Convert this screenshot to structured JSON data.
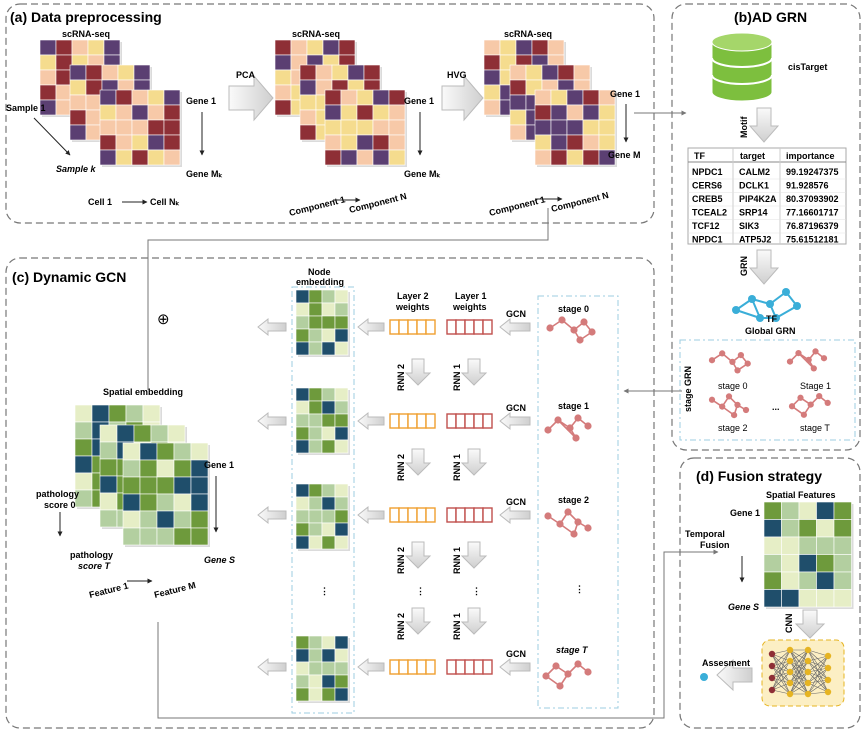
{
  "panels": {
    "a": {
      "title": "(a) Data preprocessing",
      "m1": {
        "title": "scRNA-seq",
        "sample1": "Sample 1",
        "samplek": "Sample k",
        "gene1": "Gene 1",
        "geneM": "Gene Mₖ",
        "cell1": "Cell 1",
        "cellN": "Cell Nₖ"
      },
      "pca": "PCA",
      "m2": {
        "title": "scRNA-seq",
        "gene1": "Gene 1",
        "geneM": "Gene Mₖ",
        "comp1": "Component 1",
        "compN": "Component N"
      },
      "hvg": "HVG",
      "m3": {
        "title": "scRNA-seq",
        "gene1": "Gene 1",
        "geneM": "Gene M",
        "comp1": "Component 1",
        "compN": "Component N"
      }
    },
    "b": {
      "title": "(b)AD GRN",
      "cistarget": "cisTarget",
      "motif": "Motif",
      "table": {
        "headers": [
          "TF",
          "target",
          "importance"
        ],
        "rows": [
          [
            "NPDC1",
            "CALM2",
            "99.19247375"
          ],
          [
            "CERS6",
            "DCLK1",
            "91.928576"
          ],
          [
            "CREB5",
            "PIP4K2A",
            "80.37093902"
          ],
          [
            "TCEAL2",
            "SRP14",
            "77.16601717"
          ],
          [
            "TCF12",
            "SIK3",
            "76.87196379"
          ],
          [
            "NPDC1",
            "ATP5J2",
            "75.61512181"
          ]
        ]
      },
      "grn_arrow": "GRN",
      "tf": "TF",
      "global_grn": "Global GRN",
      "stage_grn": "stage GRN",
      "stages": [
        "stage 0",
        "Stage 1",
        "stage 2",
        "stage T"
      ],
      "dots": "..."
    },
    "c": {
      "title": "(c) Dynamic GCN",
      "oplus": "⊕",
      "node_embedding_1": "Node",
      "node_embedding_2": "embedding",
      "spatial_embedding": "Spatial embedding",
      "gene1": "Gene 1",
      "geneS": "Gene S",
      "feature1": "Feature 1",
      "featureM": "Feature M",
      "path0_1": "pathology",
      "path0_2": "score 0",
      "pathT_1": "pathology",
      "pathT_2": "score T",
      "layer2_1": "Layer 2",
      "layer2_2": "weights",
      "layer1_1": "Layer 1",
      "layer1_2": "weights",
      "gcn": "GCN",
      "rnn2": "RNN 2",
      "rnn1": "RNN 1",
      "stages": [
        "stage 0",
        "stage 1",
        "stage 2",
        "stage T"
      ],
      "ellipsis": "⋮"
    },
    "d": {
      "title": "(d) Fusion strategy",
      "spatial_features": "Spatial Features",
      "gene1": "Gene 1",
      "geneS": "Gene S",
      "temporal_1": "Temporal",
      "temporal_2": "Fusion",
      "cnn": "CNN",
      "assessment": "Assesment"
    }
  },
  "colors": {
    "purple": "#5b3f72",
    "maroon": "#8e2f36",
    "peach": "#f7c9a8",
    "yellow": "#f5dc8e",
    "navy": "#1f4e6b",
    "green": "#6e9a3c",
    "sage": "#b3cfa0",
    "cream": "#e6eec6",
    "pink": "#d47b7b",
    "teal": "#3aaed8",
    "db": "#7dbf3e",
    "orange": "#f0a030",
    "red": "#c0504d"
  }
}
